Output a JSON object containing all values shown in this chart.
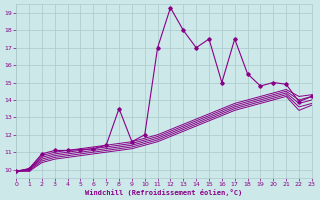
{
  "background_color": "#cce8e8",
  "grid_color": "#aac8cc",
  "line_color": "#880088",
  "xlabel": "Windchill (Refroidissement éolien,°C)",
  "xlim": [
    0,
    23
  ],
  "ylim": [
    9.5,
    19.5
  ],
  "xticks": [
    0,
    1,
    2,
    3,
    4,
    5,
    6,
    7,
    8,
    9,
    10,
    11,
    12,
    13,
    14,
    15,
    16,
    17,
    18,
    19,
    20,
    21,
    22,
    23
  ],
  "yticks": [
    10,
    11,
    12,
    13,
    14,
    15,
    16,
    17,
    18,
    19
  ],
  "smooth_lines": [
    {
      "x": [
        0,
        1,
        2,
        3,
        4,
        5,
        6,
        7,
        8,
        9,
        10,
        11,
        12,
        13,
        14,
        15,
        16,
        17,
        18,
        19,
        20,
        21,
        22,
        23
      ],
      "y": [
        9.9,
        10.05,
        10.8,
        11.0,
        11.1,
        11.2,
        11.3,
        11.4,
        11.5,
        11.6,
        11.8,
        12.0,
        12.3,
        12.6,
        12.9,
        13.2,
        13.5,
        13.8,
        14.0,
        14.2,
        14.4,
        14.6,
        14.2,
        14.3
      ]
    },
    {
      "x": [
        0,
        1,
        2,
        3,
        4,
        5,
        6,
        7,
        8,
        9,
        10,
        11,
        12,
        13,
        14,
        15,
        16,
        17,
        18,
        19,
        20,
        21,
        22,
        23
      ],
      "y": [
        9.9,
        10.0,
        10.7,
        10.9,
        11.0,
        11.1,
        11.2,
        11.3,
        11.4,
        11.5,
        11.7,
        11.9,
        12.2,
        12.5,
        12.8,
        13.1,
        13.4,
        13.7,
        13.9,
        14.1,
        14.3,
        14.5,
        14.0,
        14.2
      ]
    },
    {
      "x": [
        0,
        1,
        2,
        3,
        4,
        5,
        6,
        7,
        8,
        9,
        10,
        11,
        12,
        13,
        14,
        15,
        16,
        17,
        18,
        19,
        20,
        21,
        22,
        23
      ],
      "y": [
        9.9,
        10.0,
        10.6,
        10.8,
        10.9,
        11.0,
        11.1,
        11.2,
        11.3,
        11.4,
        11.6,
        11.8,
        12.1,
        12.4,
        12.7,
        13.0,
        13.3,
        13.6,
        13.8,
        14.0,
        14.2,
        14.4,
        13.8,
        14.0
      ]
    },
    {
      "x": [
        0,
        1,
        2,
        3,
        4,
        5,
        6,
        7,
        8,
        9,
        10,
        11,
        12,
        13,
        14,
        15,
        16,
        17,
        18,
        19,
        20,
        21,
        22,
        23
      ],
      "y": [
        9.9,
        9.95,
        10.5,
        10.7,
        10.8,
        10.9,
        11.0,
        11.1,
        11.2,
        11.3,
        11.5,
        11.7,
        12.0,
        12.3,
        12.6,
        12.9,
        13.2,
        13.5,
        13.7,
        13.9,
        14.1,
        14.3,
        13.6,
        13.8
      ]
    },
    {
      "x": [
        0,
        1,
        2,
        3,
        4,
        5,
        6,
        7,
        8,
        9,
        10,
        11,
        12,
        13,
        14,
        15,
        16,
        17,
        18,
        19,
        20,
        21,
        22,
        23
      ],
      "y": [
        9.9,
        9.9,
        10.4,
        10.6,
        10.7,
        10.8,
        10.9,
        11.0,
        11.1,
        11.2,
        11.4,
        11.6,
        11.9,
        12.2,
        12.5,
        12.8,
        13.1,
        13.4,
        13.6,
        13.8,
        14.0,
        14.2,
        13.4,
        13.7
      ]
    }
  ],
  "jagged_line": {
    "x": [
      0,
      1,
      2,
      3,
      4,
      5,
      6,
      7,
      8,
      9,
      10,
      11,
      12,
      13,
      14,
      15,
      16,
      17,
      18,
      19,
      20,
      21,
      22,
      23
    ],
    "y": [
      9.9,
      10.05,
      10.9,
      11.1,
      11.1,
      11.15,
      11.2,
      11.4,
      13.5,
      11.6,
      12.0,
      17.0,
      19.3,
      18.0,
      17.0,
      17.5,
      15.0,
      17.5,
      15.5,
      14.8,
      15.0,
      14.9,
      13.9,
      14.2
    ]
  }
}
